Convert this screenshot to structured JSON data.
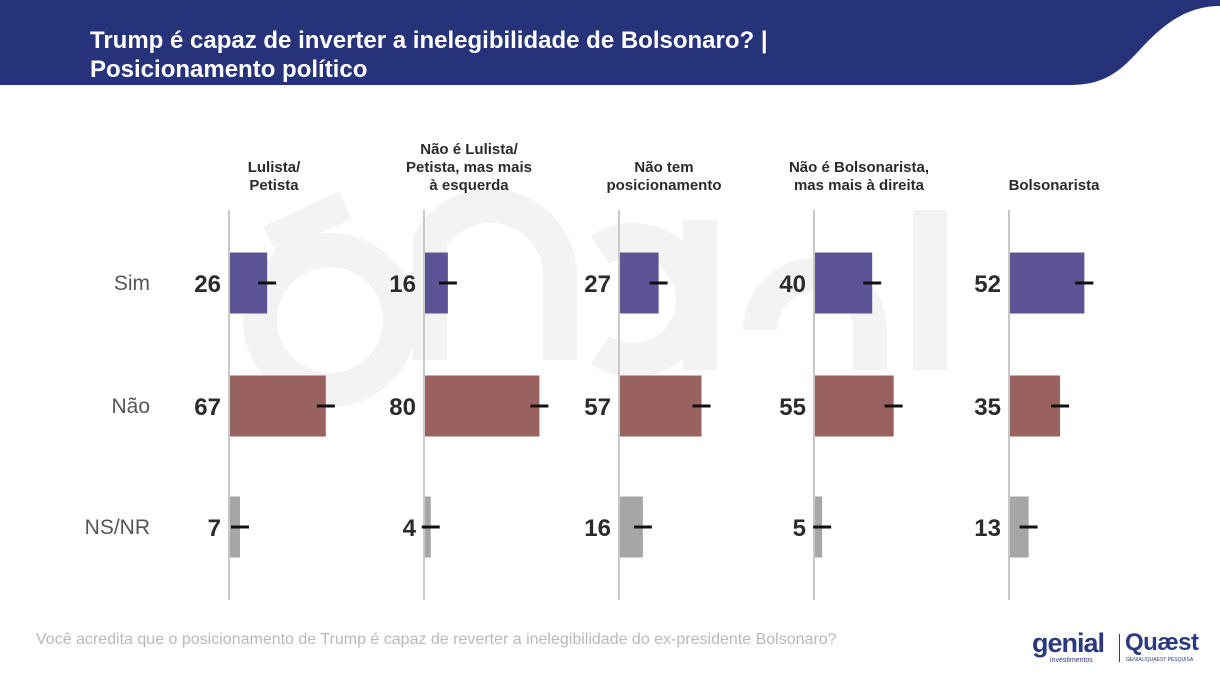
{
  "title_line1": "Trump é capaz de inverter a inelegibilidade de Bolsonaro? |",
  "title_line2": "Posicionamento político",
  "question": "Você acredita que o posicionamento de Trump é capaz de reverter a inelegibilidade do ex-presidente Bolsonaro?",
  "logos": {
    "genial": "genial",
    "genial_sub": "investimentos",
    "quaest": "Quæst",
    "quaest_sub": "GENIAL/QUAEST PESQUISA"
  },
  "colors": {
    "header": "#26337a",
    "sim": "#5d5497",
    "nao": "#9a625e",
    "nsnr": "#a6a6a6",
    "text": "#2b2b2b"
  },
  "chart_data": {
    "type": "bar",
    "orientation": "horizontal",
    "categories": [
      "Sim",
      "Não",
      "NS/NR"
    ],
    "panels": [
      {
        "label": [
          "Lulista/",
          "Petista"
        ],
        "values": [
          26,
          67,
          7
        ]
      },
      {
        "label": [
          "Não é Lulista/",
          "Petista, mas mais",
          "à esquerda"
        ],
        "values": [
          16,
          80,
          4
        ]
      },
      {
        "label": [
          "Não tem",
          "posicionamento"
        ],
        "values": [
          27,
          57,
          16
        ]
      },
      {
        "label": [
          "Não é Bolsonarista,",
          "mas mais à direita"
        ],
        "values": [
          40,
          55,
          5
        ]
      },
      {
        "label": [
          "Bolsonarista"
        ],
        "values": [
          52,
          35,
          13
        ]
      }
    ],
    "unit": "%",
    "error_bars": true,
    "xlim": [
      0,
      100
    ]
  }
}
